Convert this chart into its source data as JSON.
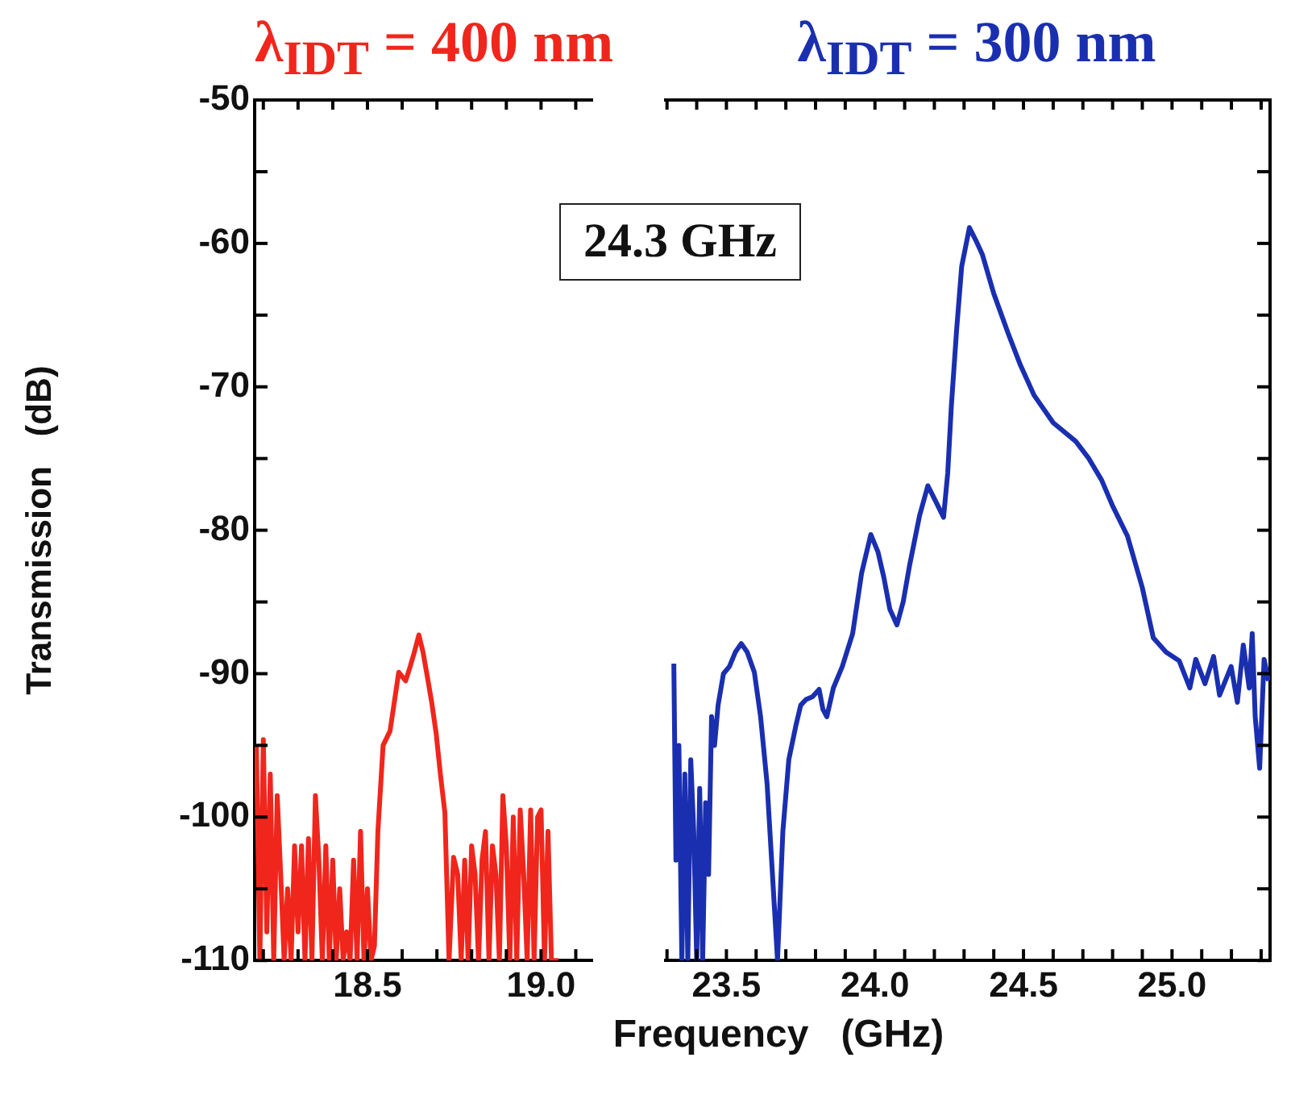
{
  "chart_data": [
    {
      "type": "line",
      "title": "λ$_{IDT}$ = 400 nm",
      "ylabel": "Transmission   (dB)",
      "xlim": [
        18.175,
        19.15
      ],
      "ylim": [
        -110,
        -50
      ],
      "xticks": [
        {
          "value": 18.2,
          "label": null
        },
        {
          "value": 18.3,
          "label": null
        },
        {
          "value": 18.4,
          "label": null
        },
        18.5,
        {
          "value": 18.6,
          "label": null
        },
        {
          "value": 18.7,
          "label": null
        },
        {
          "value": 18.8,
          "label": null
        },
        {
          "value": 18.9,
          "label": null
        },
        {
          "value": 19,
          "label": "19.0"
        },
        {
          "value": 19.1,
          "label": null
        }
      ],
      "yticks": [
        -110,
        {
          "value": -105,
          "label": null
        },
        -100,
        {
          "value": -95,
          "label": null
        },
        -90,
        {
          "value": -85,
          "label": null
        },
        -80,
        {
          "value": -75,
          "label": null
        },
        -70,
        {
          "value": -65,
          "label": null
        },
        -60,
        {
          "value": -55,
          "label": null
        },
        -50
      ],
      "series": [
        {
          "color": "#f0261c",
          "x": [
            18.18,
            18.19,
            18.2,
            18.21,
            18.22,
            18.23,
            18.24,
            18.25,
            18.26,
            18.27,
            18.28,
            18.29,
            18.3,
            18.31,
            18.32,
            18.33,
            18.34,
            18.35,
            18.36,
            18.37,
            18.38,
            18.39,
            18.4,
            18.41,
            18.42,
            18.43,
            18.44,
            18.45,
            18.46,
            18.47,
            18.48,
            18.49,
            18.5,
            18.51,
            18.52,
            18.53,
            18.545,
            18.565,
            18.59,
            18.61,
            18.623,
            18.635,
            18.648,
            18.66,
            18.673,
            18.685,
            18.698,
            18.71,
            18.723,
            18.735,
            18.748,
            18.76,
            18.77,
            18.78,
            18.79,
            18.8,
            18.81,
            18.82,
            18.83,
            18.84,
            18.85,
            18.86,
            18.87,
            18.88,
            18.89,
            18.9,
            18.91,
            18.92,
            18.93,
            18.94,
            18.95,
            18.96,
            18.97,
            18.98,
            18.99,
            19.0,
            19.01,
            19.02,
            19.03,
            19.04,
            19.05
          ],
          "values": [
            -95,
            -110,
            -94.6,
            -108,
            -97,
            -110,
            -98.5,
            -104,
            -110,
            -105,
            -110,
            -102,
            -108,
            -102,
            -110,
            -101.5,
            -110,
            -98.5,
            -103,
            -110,
            -102,
            -110,
            -103,
            -110,
            -105,
            -110,
            -108,
            -110,
            -103,
            -110,
            -101,
            -110,
            -105,
            -110,
            -109,
            -101,
            -95,
            -94,
            -89.9,
            -90.5,
            -89.5,
            -88.5,
            -87.3,
            -88.5,
            -90.3,
            -92,
            -94.2,
            -97,
            -99.7,
            -110,
            -102.8,
            -104,
            -110,
            -103,
            -110,
            -102,
            -104,
            -110,
            -103,
            -101,
            -110,
            -102,
            -104,
            -110,
            -98.5,
            -102,
            -110,
            -100,
            -110,
            -99.5,
            -104,
            -110,
            -99.5,
            -110,
            -100,
            -99.5,
            -110,
            -101,
            -110,
            -110,
            -110
          ]
        }
      ]
    },
    {
      "type": "line",
      "title": "λ$_{IDT}$ = 300 nm",
      "xlabel": "Frequency   (GHz)",
      "annotations": [
        "24.3 GHz"
      ],
      "tick_labels": "x",
      "xlim": [
        23.29,
        25.33
      ],
      "ylim": [
        -110,
        -50
      ],
      "xticks": [
        {
          "value": 23.3,
          "label": null
        },
        {
          "value": 23.4,
          "label": null
        },
        23.5,
        {
          "value": 23.6,
          "label": null
        },
        {
          "value": 23.7,
          "label": null
        },
        {
          "value": 23.8,
          "label": null
        },
        {
          "value": 23.9,
          "label": null
        },
        {
          "value": 24,
          "label": "24.0"
        },
        {
          "value": 24.1,
          "label": null
        },
        {
          "value": 24.2,
          "label": null
        },
        {
          "value": 24.3,
          "label": null
        },
        {
          "value": 24.4,
          "label": null
        },
        24.5,
        {
          "value": 24.6,
          "label": null
        },
        {
          "value": 24.7,
          "label": null
        },
        {
          "value": 24.8,
          "label": null
        },
        {
          "value": 24.9,
          "label": null
        },
        {
          "value": 25,
          "label": "25.0"
        },
        {
          "value": 25.1,
          "label": null
        },
        {
          "value": 25.2,
          "label": null
        },
        {
          "value": 25.3,
          "label": null
        }
      ],
      "yticks": [
        -110,
        {
          "value": -105,
          "label": null
        },
        -100,
        {
          "value": -95,
          "label": null
        },
        -90,
        {
          "value": -85,
          "label": null
        },
        -80,
        {
          "value": -75,
          "label": null
        },
        -70,
        {
          "value": -65,
          "label": null
        },
        -60,
        {
          "value": -55,
          "label": null
        },
        -50
      ],
      "series": [
        {
          "color": "#1a2fb0",
          "x": [
            23.323,
            23.33,
            23.34,
            23.35,
            23.36,
            23.37,
            23.38,
            23.39,
            23.4,
            23.41,
            23.42,
            23.43,
            23.44,
            23.45,
            23.46,
            23.472,
            23.49,
            23.51,
            23.53,
            23.55,
            23.57,
            23.594,
            23.615,
            23.637,
            23.655,
            23.672,
            23.69,
            23.71,
            23.733,
            23.75,
            23.768,
            23.79,
            23.812,
            23.825,
            23.838,
            23.86,
            23.89,
            23.925,
            23.955,
            23.986,
            24.01,
            24.03,
            24.05,
            24.074,
            24.095,
            24.117,
            24.15,
            24.178,
            24.205,
            24.231,
            24.245,
            24.257,
            24.275,
            24.292,
            24.318,
            24.34,
            24.362,
            24.4,
            24.449,
            24.49,
            24.536,
            24.6,
            24.676,
            24.72,
            24.763,
            24.8,
            24.85,
            24.9,
            24.937,
            24.98,
            25.024,
            25.06,
            25.08,
            25.111,
            25.14,
            25.16,
            25.199,
            25.22,
            25.24,
            25.26,
            25.27,
            25.28,
            25.295,
            25.31,
            25.325
          ],
          "values": [
            -89.3,
            -103,
            -95,
            -110,
            -97,
            -110,
            -96,
            -101,
            -110,
            -98,
            -110,
            -99,
            -104,
            -93,
            -95,
            -92.2,
            -90,
            -89.5,
            -88.5,
            -87.9,
            -88.5,
            -89.9,
            -93,
            -97.7,
            -104,
            -110,
            -101,
            -96,
            -93.7,
            -92.2,
            -91.8,
            -91.6,
            -91.1,
            -92.5,
            -93,
            -91,
            -89.5,
            -87.2,
            -83,
            -80.3,
            -81.5,
            -83.3,
            -85.5,
            -86.6,
            -85,
            -82.4,
            -79,
            -76.9,
            -78,
            -79.1,
            -76,
            -71.4,
            -66,
            -61.6,
            -58.9,
            -59.8,
            -60.8,
            -63.5,
            -66.3,
            -68.5,
            -70.6,
            -72.5,
            -73.8,
            -75,
            -76.5,
            -78.3,
            -80.4,
            -84,
            -87.5,
            -88.5,
            -89.1,
            -91,
            -89,
            -90.7,
            -88.8,
            -91.5,
            -89.5,
            -92,
            -88,
            -91,
            -87.2,
            -93,
            -96.6,
            -89,
            -90.5
          ]
        }
      ]
    }
  ]
}
